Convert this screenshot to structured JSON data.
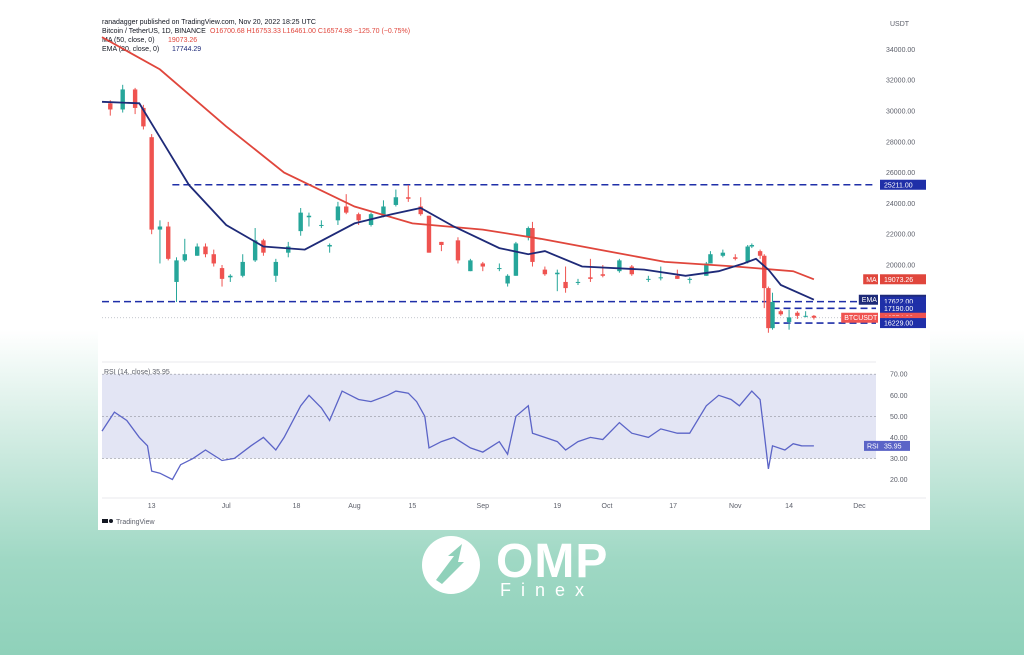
{
  "header": {
    "publisher": "ranadagger published on TradingView.com, Nov 20, 2022 18:25 UTC",
    "symbol": "Bitcoin / TetherUS, 1D, BINANCE",
    "ohlc": "O16700.68  H16753.33  L16461.00  C16574.98  −125.70 (−0.75%)",
    "ma_label": "MA (50, close, 0)",
    "ma_value": "19073.26",
    "ema_label": "EMA (20, close, 0)",
    "ema_value": "17744.29",
    "currency": "USDT"
  },
  "colors": {
    "up": "#26a69a",
    "down": "#ef5350",
    "ma": "#e0463c",
    "ema": "#1e2a78",
    "level": "#1f2fa8",
    "rsi": "#5b64c7",
    "rsi_band": "#e3e5f4"
  },
  "footer": {
    "brand": "TradingView"
  },
  "logo": {
    "name": "OMP",
    "sub": "Finex"
  },
  "chart_data": [
    {
      "type": "line",
      "title": "Bitcoin / TetherUS, 1D, BINANCE",
      "ylim": [
        15000,
        35000
      ],
      "y_ticks": [
        "34000.00",
        "32000.00",
        "30000.00",
        "28000.00",
        "26000.00",
        "24000.00",
        "22000.00",
        "20000.00"
      ],
      "x_ticks": [
        "13",
        "Jul",
        "18",
        "Aug",
        "15",
        "Sep",
        "19",
        "Oct",
        "17",
        "Nov",
        "14",
        "Dec"
      ],
      "x_range": [
        "2022-06-01",
        "2022-12-05"
      ],
      "candles": [
        [
          "2022-06-03",
          30500,
          30100,
          30700,
          29700
        ],
        [
          "2022-06-06",
          30100,
          31400,
          31700,
          29900
        ],
        [
          "2022-06-09",
          31400,
          30200,
          31500,
          29800
        ],
        [
          "2022-06-11",
          30200,
          29000,
          30400,
          28800
        ],
        [
          "2022-06-13",
          28300,
          22300,
          28500,
          22000
        ],
        [
          "2022-06-15",
          22300,
          22500,
          22900,
          20100
        ],
        [
          "2022-06-17",
          22500,
          20400,
          22800,
          20300
        ],
        [
          "2022-06-19",
          18900,
          20300,
          20500,
          17600
        ],
        [
          "2022-06-21",
          20300,
          20700,
          21700,
          20200
        ],
        [
          "2022-06-24",
          20600,
          21200,
          21400,
          20600
        ],
        [
          "2022-06-26",
          21200,
          20700,
          21400,
          20500
        ],
        [
          "2022-06-28",
          20700,
          20100,
          21000,
          19900
        ],
        [
          "2022-06-30",
          19800,
          19100,
          20000,
          18600
        ],
        [
          "2022-07-02",
          19200,
          19300,
          19400,
          18900
        ],
        [
          "2022-07-05",
          19300,
          20200,
          20700,
          19200
        ],
        [
          "2022-07-08",
          20300,
          21600,
          22400,
          20200
        ],
        [
          "2022-07-10",
          21600,
          20800,
          21700,
          20600
        ],
        [
          "2022-07-13",
          19300,
          20200,
          20400,
          18900
        ],
        [
          "2022-07-16",
          20800,
          21200,
          21500,
          20500
        ],
        [
          "2022-07-19",
          22200,
          23400,
          23700,
          21900
        ],
        [
          "2022-07-21",
          23100,
          23200,
          23400,
          22500
        ],
        [
          "2022-07-24",
          22600,
          22600,
          22900,
          22400
        ],
        [
          "2022-07-26",
          21200,
          21300,
          21400,
          20800
        ],
        [
          "2022-07-28",
          22900,
          23800,
          24100,
          22600
        ],
        [
          "2022-07-30",
          23800,
          23400,
          24600,
          23300
        ],
        [
          "2022-08-02",
          23300,
          22900,
          23400,
          22600
        ],
        [
          "2022-08-05",
          22600,
          23300,
          23400,
          22500
        ],
        [
          "2022-08-08",
          23200,
          23800,
          24200,
          23100
        ],
        [
          "2022-08-11",
          23900,
          24400,
          24900,
          23800
        ],
        [
          "2022-08-14",
          24400,
          24300,
          25200,
          24100
        ],
        [
          "2022-08-17",
          23800,
          23300,
          24400,
          23200
        ],
        [
          "2022-08-19",
          23200,
          20800,
          23200,
          20800
        ],
        [
          "2022-08-22",
          21500,
          21300,
          21500,
          20900
        ],
        [
          "2022-08-26",
          21600,
          20300,
          21800,
          20100
        ],
        [
          "2022-08-29",
          19600,
          20300,
          20400,
          19600
        ],
        [
          "2022-09-01",
          20100,
          19900,
          20200,
          19600
        ],
        [
          "2022-09-05",
          19800,
          19800,
          20100,
          19600
        ],
        [
          "2022-09-07",
          18800,
          19300,
          19400,
          18600
        ],
        [
          "2022-09-09",
          19300,
          21400,
          21500,
          19300
        ],
        [
          "2022-09-12",
          21800,
          22400,
          22500,
          21600
        ],
        [
          "2022-09-13",
          22400,
          20200,
          22800,
          19900
        ],
        [
          "2022-09-16",
          19700,
          19400,
          19900,
          19300
        ],
        [
          "2022-09-19",
          19400,
          19500,
          19700,
          18300
        ],
        [
          "2022-09-21",
          18900,
          18500,
          19900,
          18200
        ],
        [
          "2022-09-24",
          18900,
          18900,
          19100,
          18700
        ],
        [
          "2022-09-27",
          19200,
          19100,
          20400,
          18900
        ],
        [
          "2022-09-30",
          19400,
          19300,
          20000,
          19200
        ],
        [
          "2022-10-04",
          19600,
          20300,
          20400,
          19500
        ],
        [
          "2022-10-07",
          19900,
          19400,
          20000,
          19300
        ],
        [
          "2022-10-11",
          19100,
          19100,
          19300,
          18900
        ],
        [
          "2022-10-14",
          19200,
          19200,
          19900,
          19000
        ],
        [
          "2022-10-18",
          19300,
          19100,
          19700,
          19100
        ],
        [
          "2022-10-21",
          19100,
          19100,
          19200,
          18800
        ],
        [
          "2022-10-25",
          19300,
          20100,
          20200,
          19300
        ],
        [
          "2022-10-26",
          20100,
          20700,
          20900,
          20100
        ],
        [
          "2022-10-29",
          20600,
          20800,
          21000,
          20500
        ],
        [
          "2022-11-01",
          20500,
          20400,
          20700,
          20300
        ],
        [
          "2022-11-04",
          20200,
          21200,
          21300,
          20100
        ],
        [
          "2022-11-05",
          21200,
          21300,
          21400,
          21100
        ],
        [
          "2022-11-07",
          20900,
          20600,
          21000,
          20400
        ],
        [
          "2022-11-08",
          20600,
          18500,
          20700,
          17200
        ],
        [
          "2022-11-09",
          18500,
          15900,
          18600,
          15600
        ],
        [
          "2022-11-10",
          15900,
          17600,
          18200,
          15800
        ],
        [
          "2022-11-12",
          17000,
          16800,
          17100,
          16700
        ],
        [
          "2022-11-14",
          16300,
          16600,
          17100,
          15800
        ],
        [
          "2022-11-16",
          16900,
          16700,
          17000,
          16500
        ],
        [
          "2022-11-18",
          16700,
          16700,
          17000,
          16600
        ],
        [
          "2022-11-20",
          16700,
          16575,
          16753,
          16461
        ]
      ],
      "ma50": [
        [
          "2022-06-01",
          34800
        ],
        [
          "2022-06-15",
          32700
        ],
        [
          "2022-07-01",
          29000
        ],
        [
          "2022-07-15",
          26000
        ],
        [
          "2022-08-01",
          23800
        ],
        [
          "2022-08-15",
          22700
        ],
        [
          "2022-09-01",
          22300
        ],
        [
          "2022-09-15",
          21700
        ],
        [
          "2022-10-01",
          20900
        ],
        [
          "2022-10-15",
          20200
        ],
        [
          "2022-11-01",
          19900
        ],
        [
          "2022-11-15",
          19600
        ],
        [
          "2022-11-20",
          19073.26
        ]
      ],
      "ema20": [
        [
          "2022-06-01",
          30600
        ],
        [
          "2022-06-10",
          30500
        ],
        [
          "2022-06-15",
          28300
        ],
        [
          "2022-06-22",
          25200
        ],
        [
          "2022-07-01",
          22600
        ],
        [
          "2022-07-10",
          21200
        ],
        [
          "2022-07-20",
          21000
        ],
        [
          "2022-08-01",
          22700
        ],
        [
          "2022-08-10",
          23300
        ],
        [
          "2022-08-17",
          23700
        ],
        [
          "2022-08-25",
          22500
        ],
        [
          "2022-09-05",
          21100
        ],
        [
          "2022-09-12",
          20700
        ],
        [
          "2022-09-16",
          20900
        ],
        [
          "2022-09-25",
          19900
        ],
        [
          "2022-10-10",
          19700
        ],
        [
          "2022-10-20",
          19300
        ],
        [
          "2022-10-28",
          19600
        ],
        [
          "2022-11-03",
          20100
        ],
        [
          "2022-11-06",
          20400
        ],
        [
          "2022-11-09",
          19700
        ],
        [
          "2022-11-12",
          18700
        ],
        [
          "2022-11-20",
          17744.29
        ]
      ],
      "levels": [
        {
          "value": 25211,
          "label": "25211.00",
          "from": "2022-06-18"
        },
        {
          "value": 17622,
          "label": "17622.00",
          "from": "2022-06-01"
        },
        {
          "value": 17190,
          "label": "17190.00",
          "from": "2022-11-10"
        },
        {
          "value": 16229,
          "label": "16229.00",
          "from": "2022-11-10"
        }
      ],
      "badges": [
        {
          "name": "ma-badge",
          "tag": "MA",
          "text": "19073.26",
          "value": 19073.26,
          "color": "#e0463c"
        },
        {
          "name": "ema-badge",
          "tag": "EMA",
          "text": "17744.29",
          "value": 17744.29,
          "color": "#1e2a78"
        },
        {
          "name": "level-badge-17622",
          "tag": "",
          "text": "17622.00",
          "value": 17622,
          "color": "#1f2fa8"
        },
        {
          "name": "level-badge-17190",
          "tag": "",
          "text": "17190.00",
          "value": 17190,
          "color": "#1f2fa8"
        },
        {
          "name": "price-badge",
          "tag": "BTCUSDT",
          "text": "16574.98",
          "value": 16574.98,
          "color": "#ef5350"
        },
        {
          "name": "countdown-badge",
          "tag": "",
          "text": "05:34:39",
          "value": 16400,
          "color": "#ef5350"
        },
        {
          "name": "level-badge-16229",
          "tag": "",
          "text": "16229.00",
          "value": 16229,
          "color": "#1f2fa8"
        },
        {
          "name": "level-badge-25211",
          "tag": "",
          "text": "25211.00",
          "value": 25211,
          "color": "#1f2fa8"
        }
      ]
    },
    {
      "type": "line",
      "title": "RSI (14, close)",
      "value_label": "35.95",
      "ylim": [
        15,
        72
      ],
      "y_ticks": [
        "70.00",
        "60.00",
        "50.00",
        "40.00",
        "30.00",
        "20.00"
      ],
      "band": [
        30,
        70
      ],
      "mid": 50,
      "series": [
        [
          "2022-06-01",
          43
        ],
        [
          "2022-06-04",
          52
        ],
        [
          "2022-06-07",
          48
        ],
        [
          "2022-06-10",
          40
        ],
        [
          "2022-06-12",
          36
        ],
        [
          "2022-06-13",
          24
        ],
        [
          "2022-06-15",
          23
        ],
        [
          "2022-06-18",
          20
        ],
        [
          "2022-06-20",
          27
        ],
        [
          "2022-06-23",
          30
        ],
        [
          "2022-06-26",
          34
        ],
        [
          "2022-06-30",
          29
        ],
        [
          "2022-07-03",
          30
        ],
        [
          "2022-07-07",
          36
        ],
        [
          "2022-07-10",
          40
        ],
        [
          "2022-07-13",
          34
        ],
        [
          "2022-07-15",
          40
        ],
        [
          "2022-07-19",
          55
        ],
        [
          "2022-07-21",
          60
        ],
        [
          "2022-07-24",
          54
        ],
        [
          "2022-07-26",
          48
        ],
        [
          "2022-07-29",
          62
        ],
        [
          "2022-08-02",
          58
        ],
        [
          "2022-08-05",
          57
        ],
        [
          "2022-08-09",
          60
        ],
        [
          "2022-08-11",
          62
        ],
        [
          "2022-08-14",
          61
        ],
        [
          "2022-08-16",
          57
        ],
        [
          "2022-08-18",
          50
        ],
        [
          "2022-08-19",
          35
        ],
        [
          "2022-08-22",
          38
        ],
        [
          "2022-08-25",
          40
        ],
        [
          "2022-08-29",
          35
        ],
        [
          "2022-09-01",
          33
        ],
        [
          "2022-09-05",
          38
        ],
        [
          "2022-09-07",
          32
        ],
        [
          "2022-09-09",
          50
        ],
        [
          "2022-09-12",
          55
        ],
        [
          "2022-09-13",
          42
        ],
        [
          "2022-09-16",
          40
        ],
        [
          "2022-09-19",
          38
        ],
        [
          "2022-09-21",
          34
        ],
        [
          "2022-09-24",
          38
        ],
        [
          "2022-09-27",
          40
        ],
        [
          "2022-09-30",
          39
        ],
        [
          "2022-10-04",
          47
        ],
        [
          "2022-10-07",
          42
        ],
        [
          "2022-10-11",
          40
        ],
        [
          "2022-10-14",
          44
        ],
        [
          "2022-10-18",
          42
        ],
        [
          "2022-10-21",
          42
        ],
        [
          "2022-10-25",
          55
        ],
        [
          "2022-10-28",
          60
        ],
        [
          "2022-10-31",
          58
        ],
        [
          "2022-11-02",
          55
        ],
        [
          "2022-11-05",
          62
        ],
        [
          "2022-11-07",
          58
        ],
        [
          "2022-11-08",
          42
        ],
        [
          "2022-11-09",
          25
        ],
        [
          "2022-11-10",
          36
        ],
        [
          "2022-11-13",
          34
        ],
        [
          "2022-11-15",
          37
        ],
        [
          "2022-11-17",
          36
        ],
        [
          "2022-11-20",
          35.95
        ]
      ]
    }
  ]
}
